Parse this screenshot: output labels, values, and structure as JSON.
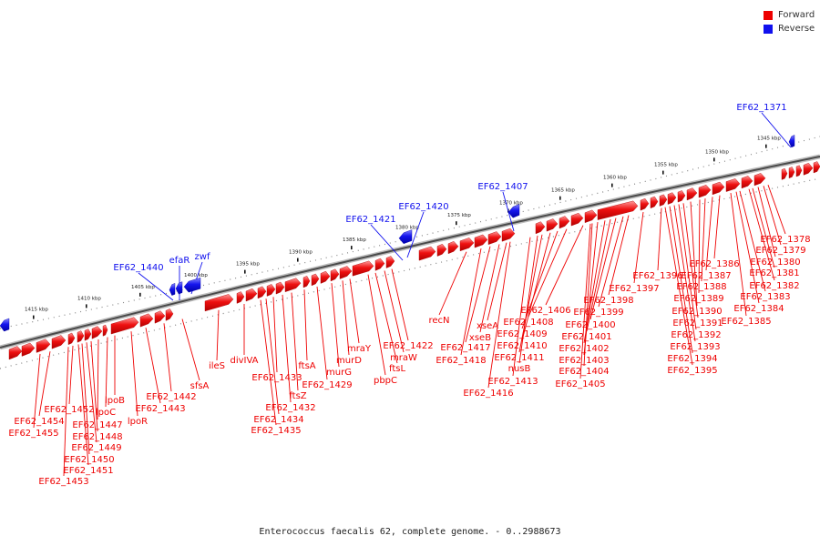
{
  "legend": {
    "forward": {
      "label": "Forward",
      "color": "#ee0000"
    },
    "reverse": {
      "label": "Reverse",
      "color": "#1010ee"
    }
  },
  "caption": "Enterococcus faecalis 62, complete genome. - 0..2988673",
  "ticks": [
    "1345 kbp",
    "1350 kbp",
    "1355 kbp",
    "1360 kbp",
    "1365 kbp",
    "1370 kbp",
    "1375 kbp",
    "1380 kbp",
    "1385 kbp",
    "1390 kbp",
    "1395 kbp",
    "1400 kbp",
    "1405 kbp",
    "1410 kbp",
    "1415 kbp"
  ],
  "reverse_labels": [
    "EF62_1371",
    "EF62_1407",
    "EF62_1420",
    "EF62_1421",
    "zwf",
    "efaR",
    "EF62_1440"
  ],
  "forward_labels": [
    "EF62_1378",
    "EF62_1379",
    "EF62_1380",
    "EF62_1381",
    "EF62_1382",
    "EF62_1383",
    "EF62_1384",
    "EF62_1385",
    "EF62_1386",
    "EF62_1387",
    "EF62_1388",
    "EF62_1389",
    "EF62_1390",
    "EF62_1391",
    "EF62_1392",
    "EF62_1393",
    "EF62_1394",
    "EF62_1395",
    "EF62_1396",
    "EF62_1397",
    "EF62_1398",
    "EF62_1399",
    "EF62_1400",
    "EF62_1401",
    "EF62_1402",
    "EF62_1403",
    "EF62_1404",
    "EF62_1405",
    "EF62_1406",
    "EF62_1408",
    "EF62_1409",
    "EF62_1410",
    "EF62_1411",
    "nusB",
    "EF62_1413",
    "EF62_1416",
    "xseA",
    "xseB",
    "EF62_1417",
    "EF62_1418",
    "recN",
    "EF62_1422",
    "mraW",
    "ftsL",
    "pbpC",
    "mraY",
    "murD",
    "murG",
    "EF62_1429",
    "ftsA",
    "ftsZ",
    "EF62_1432",
    "EF62_1433",
    "EF62_1434",
    "EF62_1435",
    "divIVA",
    "ileS",
    "sfsA",
    "EF62_1442",
    "EF62_1443",
    "lpoR",
    "lpoB",
    "lpoC",
    "EF62_1447",
    "EF62_1448",
    "EF62_1449",
    "EF62_1450",
    "EF62_1451",
    "EF62_1452",
    "EF62_1453",
    "EF62_1454",
    "EF62_1455"
  ]
}
